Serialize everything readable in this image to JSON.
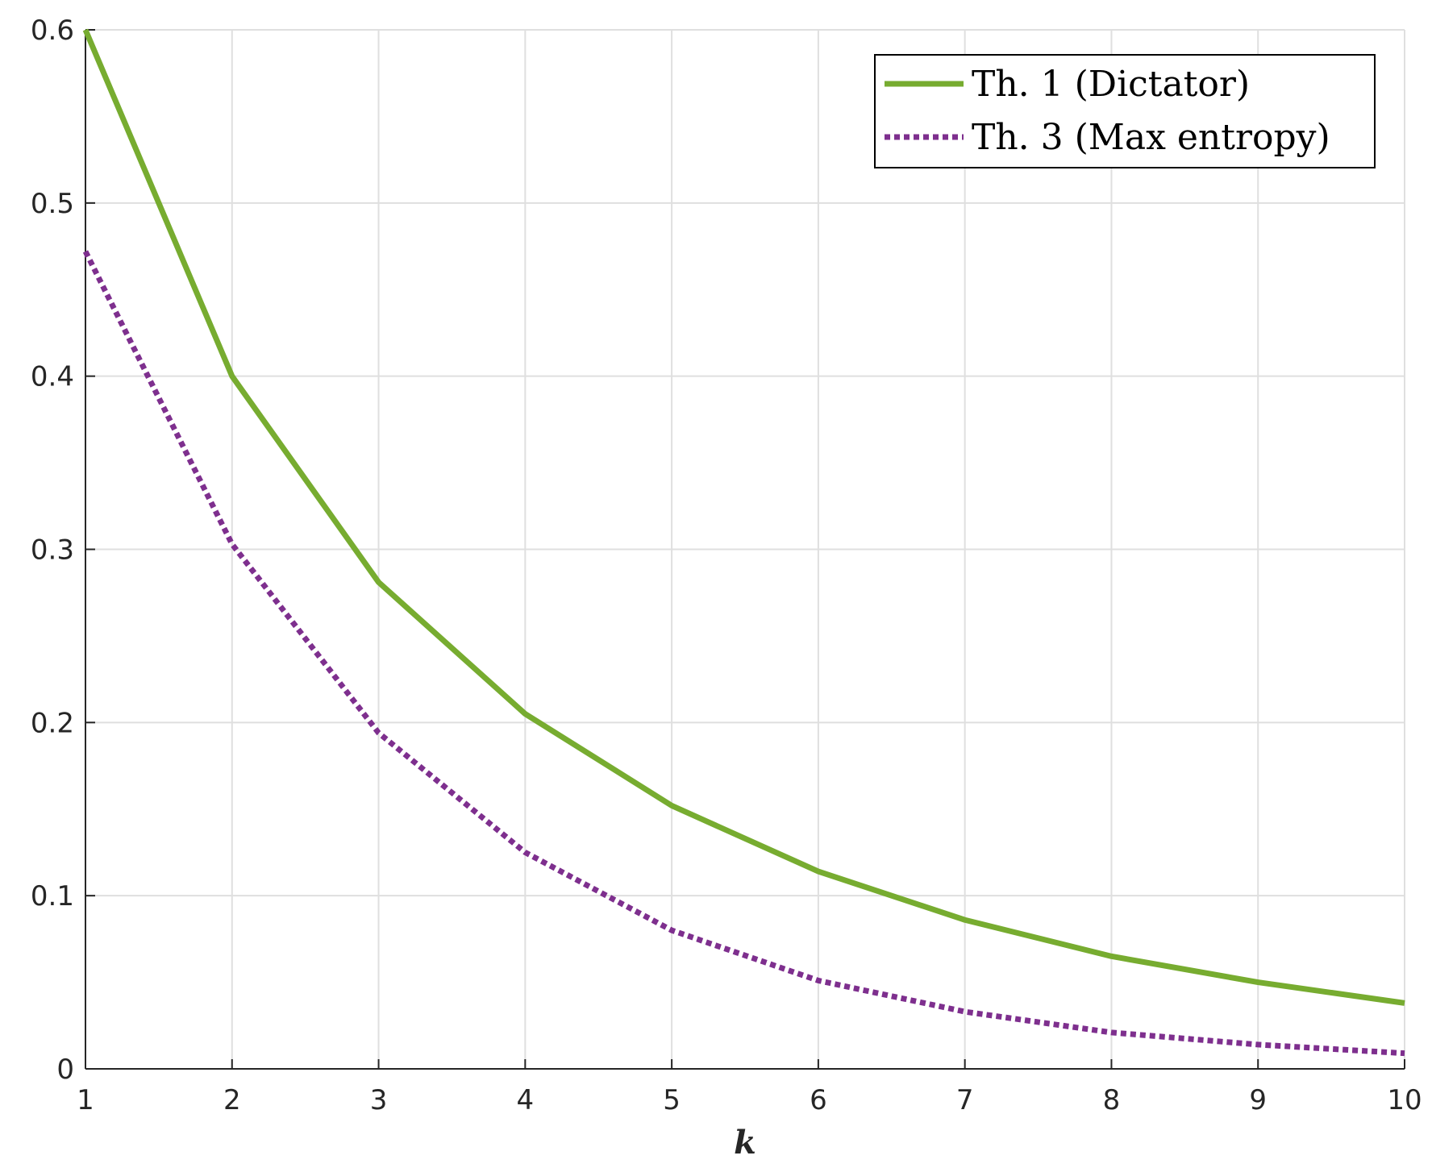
{
  "chart_data": {
    "type": "line",
    "title": "",
    "xlabel": "k",
    "ylabel": "",
    "x": [
      1,
      2,
      3,
      4,
      5,
      6,
      7,
      8,
      9,
      10
    ],
    "xlim": [
      1,
      10
    ],
    "ylim": [
      0,
      0.6
    ],
    "xticks": [
      "1",
      "2",
      "3",
      "4",
      "5",
      "6",
      "7",
      "8",
      "9",
      "10"
    ],
    "yticks": [
      "0",
      "0.1",
      "0.2",
      "0.3",
      "0.4",
      "0.5",
      "0.6"
    ],
    "grid": true,
    "legend_position": "top-right",
    "series": [
      {
        "name": "Th. 1 (Dictator)",
        "style": "solid",
        "color": "#77ac30",
        "values": [
          0.6,
          0.4,
          0.281,
          0.205,
          0.152,
          0.114,
          0.086,
          0.065,
          0.05,
          0.038
        ]
      },
      {
        "name": "Th. 3 (Max entropy)",
        "style": "dotted",
        "color": "#7e2f8e",
        "values": [
          0.472,
          0.303,
          0.194,
          0.125,
          0.08,
          0.051,
          0.033,
          0.021,
          0.014,
          0.009
        ]
      }
    ]
  }
}
